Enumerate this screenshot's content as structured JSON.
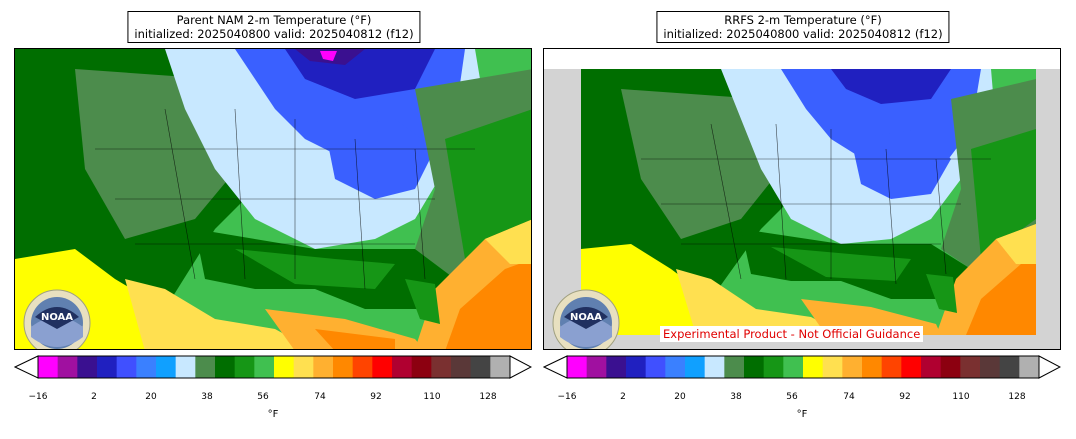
{
  "panels": [
    {
      "id": "left",
      "title_line1": "Parent NAM 2-m Temperature (°F)",
      "title_line2": "initialized: 2025040800 valid: 2025040812 (f12)"
    },
    {
      "id": "right",
      "title_line1": "RRFS 2-m Temperature (°F)",
      "title_line2": "initialized: 2025040800 valid: 2025040812 (f12)",
      "disclaimer": "Experimental Product - Not Official Guidance"
    }
  ],
  "logo": {
    "text": "NOAA",
    "icon": "noaa-logo-icon"
  },
  "colorbar": {
    "unit": "°F",
    "tick_labels": [
      "−16",
      "2",
      "20",
      "38",
      "56",
      "74",
      "92",
      "110",
      "128"
    ],
    "colors": [
      "#ff00ff",
      "#a010a0",
      "#3a1090",
      "#2020c0",
      "#4050ff",
      "#3a80ff",
      "#10a0ff",
      "#c8e8ff",
      "#4c8c4c",
      "#006e00",
      "#169616",
      "#40c050",
      "#ffff00",
      "#ffe050",
      "#ffb030",
      "#ff8800",
      "#ff4400",
      "#ff0000",
      "#b00030",
      "#8c0010",
      "#7a3030",
      "#5a3838",
      "#444444",
      "#b0b0b0"
    ]
  },
  "map_colors": {
    "very_cold_magenta": "#ff00ff",
    "very_cold_purple": "#3a1090",
    "cold_blue": "#3a60ff",
    "light_blue": "#c8e8ff",
    "dark_green": "#006e00",
    "mid_green": "#169616",
    "gray_green": "#4c8c4c",
    "light_green": "#40c050",
    "yellow": "#ffff00",
    "light_orange": "#ffe050",
    "orange": "#ffb030",
    "dark_orange": "#ff8800",
    "missing_gray": "#d3d3d3"
  }
}
